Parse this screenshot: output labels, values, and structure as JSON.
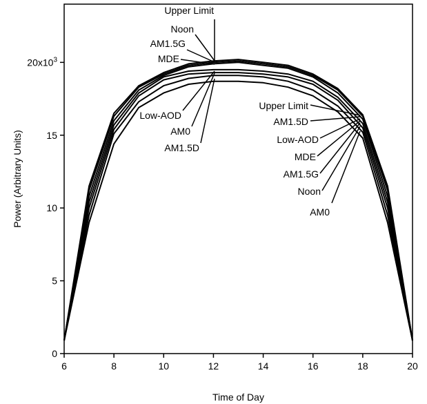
{
  "chart_data": {
    "type": "line",
    "title": "",
    "xlabel": "Time of Day",
    "ylabel": "Power (Arbitrary Units)",
    "xlim": [
      6,
      20
    ],
    "ylim": [
      0,
      24000
    ],
    "grid": false,
    "x_ticks": [
      {
        "value": 6,
        "label": "6"
      },
      {
        "value": 8,
        "label": "8"
      },
      {
        "value": 10,
        "label": "10"
      },
      {
        "value": 12,
        "label": "12"
      },
      {
        "value": 14,
        "label": "14"
      },
      {
        "value": 16,
        "label": "16"
      },
      {
        "value": 18,
        "label": "18"
      },
      {
        "value": 20,
        "label": "20"
      }
    ],
    "y_ticks": [
      {
        "value": 0,
        "label": "0"
      },
      {
        "value": 5000,
        "label": "5"
      },
      {
        "value": 10000,
        "label": "10"
      },
      {
        "value": 15000,
        "label": "15"
      },
      {
        "value": 20000,
        "label": "20x10",
        "sup": "3"
      }
    ],
    "x": [
      6,
      7,
      8,
      9,
      10,
      11,
      12,
      13,
      14,
      15,
      16,
      17,
      18,
      19,
      20
    ],
    "series": [
      {
        "name": "Upper Limit",
        "values": [
          900,
          11500,
          16500,
          18400,
          19300,
          19900,
          20100,
          20200,
          20000,
          19800,
          19200,
          18200,
          16400,
          11500,
          900
        ]
      },
      {
        "name": "Noon",
        "values": [
          900,
          11200,
          16300,
          18300,
          19200,
          19800,
          20000,
          20100,
          19900,
          19700,
          19100,
          18100,
          16300,
          11200,
          900
        ]
      },
      {
        "name": "AM1.5G",
        "values": [
          900,
          10800,
          16000,
          18100,
          19100,
          19700,
          19900,
          20000,
          19800,
          19600,
          19000,
          17900,
          16100,
          10800,
          900
        ]
      },
      {
        "name": "MDE",
        "values": [
          900,
          10400,
          15700,
          17900,
          19000,
          19400,
          19500,
          19500,
          19400,
          19200,
          18700,
          17600,
          15800,
          10400,
          900
        ]
      },
      {
        "name": "Low-AOD",
        "values": [
          900,
          10000,
          15400,
          17700,
          18800,
          19200,
          19300,
          19300,
          19200,
          19000,
          18500,
          17400,
          15500,
          10000,
          900
        ]
      },
      {
        "name": "AM0",
        "values": [
          900,
          9500,
          15100,
          17300,
          18400,
          18900,
          19100,
          19100,
          19000,
          18700,
          18100,
          17000,
          15200,
          9500,
          900
        ]
      },
      {
        "name": "AM1.5D",
        "values": [
          900,
          9000,
          14400,
          16900,
          17900,
          18500,
          18700,
          18700,
          18600,
          18300,
          17700,
          16600,
          14800,
          9000,
          900
        ]
      }
    ],
    "annotations_left": [
      {
        "label": "Upper Limit"
      },
      {
        "label": "Noon"
      },
      {
        "label": "AM1.5G"
      },
      {
        "label": "MDE"
      },
      {
        "label": "Low-AOD"
      },
      {
        "label": "AM0"
      },
      {
        "label": "AM1.5D"
      }
    ],
    "annotations_right": [
      {
        "label": "Upper Limit"
      },
      {
        "label": "AM1.5D"
      },
      {
        "label": "Low-AOD"
      },
      {
        "label": "MDE"
      },
      {
        "label": "AM1.5G"
      },
      {
        "label": "Noon"
      },
      {
        "label": "AM0"
      }
    ]
  }
}
